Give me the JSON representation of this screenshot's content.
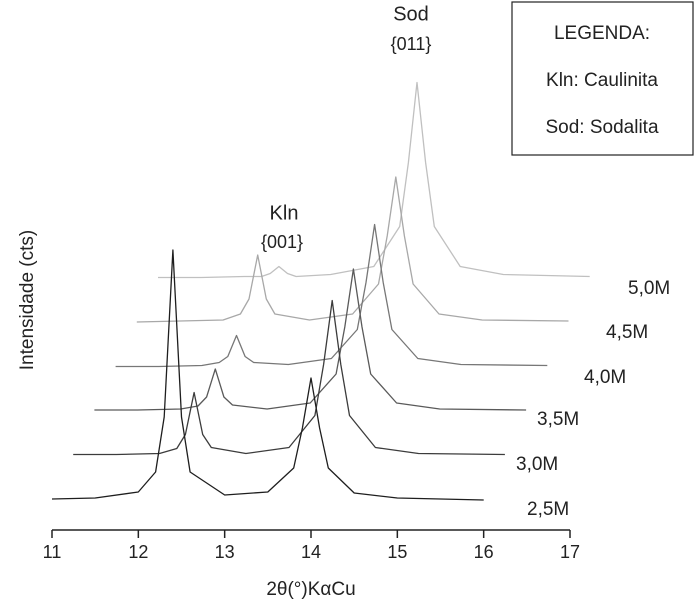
{
  "chart_data": {
    "type": "waterfall",
    "x_label": "2θ(°)KαCu",
    "y_label": "Intensidade (cts)",
    "xlim": [
      11,
      17
    ],
    "xticks": [
      11,
      12,
      13,
      14,
      15,
      16,
      17
    ],
    "ylim": [
      0,
      260
    ],
    "x": [
      11,
      11.5,
      12,
      12.2,
      12.3,
      12.4,
      12.5,
      12.6,
      13,
      13.5,
      13.8,
      13.9,
      14,
      14.1,
      14.2,
      14.5,
      15,
      16
    ],
    "series": [
      {
        "name": "2,5M",
        "color": "#1e1e1e",
        "values": [
          6,
          7,
          13,
          33,
          88,
          255,
          88,
          33,
          10,
          13,
          37,
          77,
          127,
          77,
          37,
          12,
          7,
          5
        ]
      },
      {
        "name": "3,0M",
        "color": "#3c3c3c",
        "values": [
          6,
          6,
          7,
          12,
          26,
          68,
          26,
          13,
          7,
          13,
          45,
          96,
          160,
          96,
          45,
          13,
          7,
          6
        ]
      },
      {
        "name": "3,5M",
        "color": "#5a5a5a",
        "values": [
          6,
          6,
          7,
          10,
          19,
          47,
          19,
          11,
          7,
          13,
          42,
          89,
          147,
          89,
          42,
          13,
          7,
          6
        ]
      },
      {
        "name": "4,0M",
        "color": "#777777",
        "values": [
          5,
          5,
          6,
          9,
          15,
          36,
          15,
          9,
          7,
          13,
          42,
          89,
          147,
          89,
          42,
          13,
          7,
          6
        ]
      },
      {
        "name": "4,5M",
        "color": "#a8a8a8",
        "values": [
          5,
          6,
          7,
          13,
          28,
          72,
          28,
          13,
          7,
          13,
          43,
          91,
          150,
          91,
          43,
          13,
          7,
          6
        ]
      },
      {
        "name": "5,0M",
        "color": "#c0c0c0",
        "values": [
          5,
          5,
          6,
          6,
          9,
          16,
          9,
          6,
          8,
          16,
          56,
          120,
          200,
          120,
          56,
          16,
          8,
          6
        ]
      }
    ],
    "annotations": [
      {
        "text": "Kln",
        "sub": "{001}"
      },
      {
        "text": "Sod",
        "sub": "{011}"
      }
    ],
    "legend": {
      "title": "LEGENDA:",
      "entries": [
        "Kln: Caulinita",
        "Sod: Sodalita"
      ]
    }
  }
}
